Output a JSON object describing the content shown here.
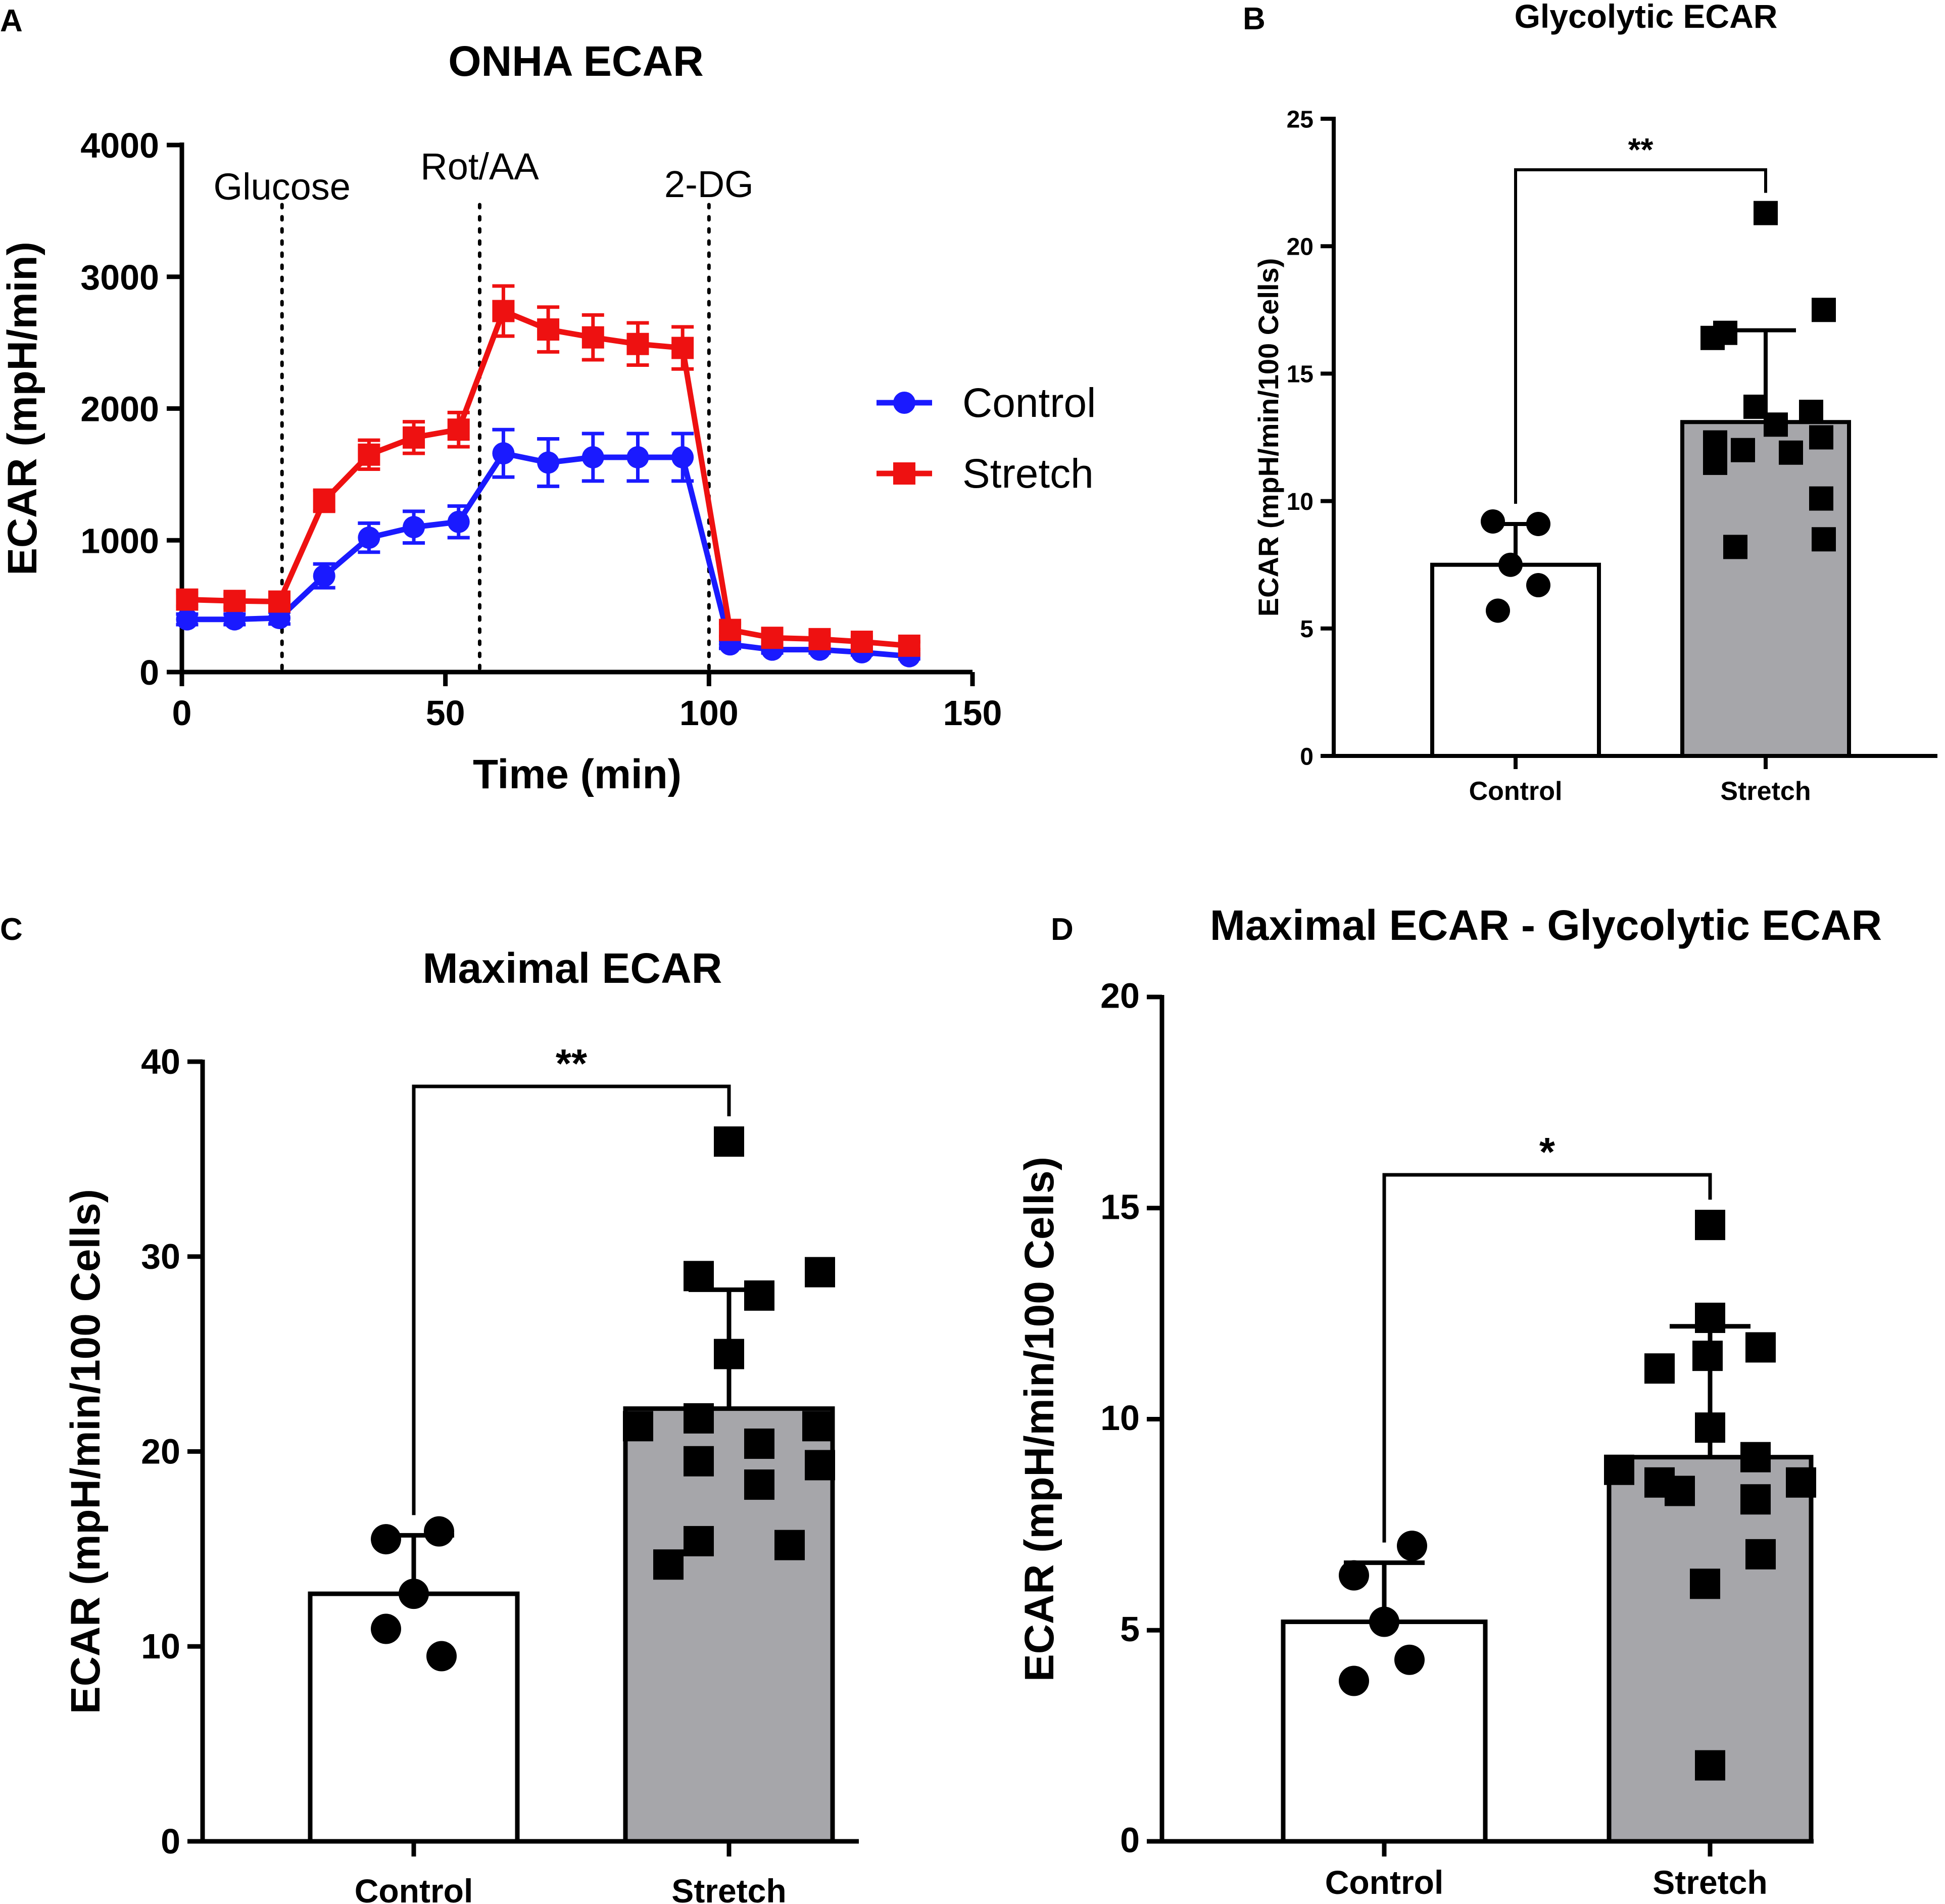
{
  "chart_data": [
    {
      "id": "A",
      "type": "line",
      "panel_letter": "A",
      "title": "ONHA ECAR",
      "xlabel": "Time (min)",
      "ylabel": "ECAR (mpH/min)",
      "xlim": [
        0,
        150
      ],
      "ylim": [
        0,
        4000
      ],
      "xticks": [
        0,
        50,
        100,
        150
      ],
      "yticks": [
        0,
        1000,
        2000,
        3000,
        4000
      ],
      "annotations": [
        {
          "label": "Glucose",
          "x": 19
        },
        {
          "label": "Rot/AA",
          "x": 56.5
        },
        {
          "label": "2-DG",
          "x": 100
        }
      ],
      "legend": {
        "position": "right",
        "entries": [
          "Control",
          "Stretch"
        ]
      },
      "series": [
        {
          "name": "Control",
          "color": "#1a1aff",
          "marker": "circle",
          "x": [
            1,
            10,
            18.5,
            27,
            35.5,
            44,
            52.5,
            61,
            69.5,
            78,
            86.5,
            95,
            104,
            112,
            121,
            129,
            138
          ],
          "y": [
            400,
            400,
            410,
            730,
            1020,
            1100,
            1140,
            1660,
            1590,
            1630,
            1630,
            1630,
            210,
            170,
            170,
            150,
            120
          ],
          "err": [
            40,
            40,
            45,
            90,
            110,
            120,
            120,
            180,
            180,
            180,
            180,
            180,
            30,
            25,
            25,
            20,
            20
          ]
        },
        {
          "name": "Stretch",
          "color": "#ee1111",
          "marker": "square",
          "x": [
            1,
            10,
            18.5,
            27,
            35.5,
            44,
            52.5,
            61,
            69.5,
            78,
            86.5,
            95,
            104,
            112,
            121,
            129,
            138
          ],
          "y": [
            550,
            540,
            535,
            1300,
            1650,
            1780,
            1840,
            2740,
            2600,
            2540,
            2490,
            2460,
            320,
            260,
            250,
            230,
            200
          ],
          "err": [
            50,
            50,
            50,
            80,
            110,
            120,
            130,
            190,
            170,
            170,
            160,
            160,
            50,
            40,
            40,
            35,
            30
          ]
        }
      ]
    },
    {
      "id": "B",
      "type": "bar",
      "panel_letter": "B",
      "title": "Glycolytic ECAR",
      "xlabel": "",
      "ylabel": "ECAR (mpH/min/100 Cells)",
      "ylim": [
        0,
        25
      ],
      "yticks": [
        0,
        5,
        10,
        15,
        20,
        25
      ],
      "categories": [
        "Control",
        "Stretch"
      ],
      "values": [
        7.5,
        13.1
      ],
      "sd": [
        1.6,
        3.6
      ],
      "points": [
        [
          9.2,
          9.1,
          7.5,
          6.7,
          5.7
        ],
        [
          21.3,
          17.5,
          16.6,
          16.4,
          13.7,
          13.5,
          13.0,
          12.5,
          12.3,
          12.0,
          11.9,
          11.5,
          10.1,
          8.5,
          8.2
        ]
      ],
      "significance": "**"
    },
    {
      "id": "C",
      "type": "bar",
      "panel_letter": "C",
      "title": "Maximal ECAR",
      "xlabel": "",
      "ylabel": "ECAR (mpH/min/100 Cells)",
      "ylim": [
        0,
        40
      ],
      "yticks": [
        0,
        10,
        20,
        30,
        40
      ],
      "categories": [
        "Control",
        "Stretch"
      ],
      "values": [
        12.7,
        22.2
      ],
      "sd": [
        3.0,
        6.1
      ],
      "points": [
        [
          15.9,
          15.5,
          12.7,
          10.9,
          9.5
        ],
        [
          35.9,
          29.2,
          29.0,
          28.0,
          25.0,
          21.7,
          21.3,
          21.3,
          20.4,
          19.5,
          19.3,
          18.3,
          15.4,
          15.2,
          14.2
        ]
      ],
      "significance": "**"
    },
    {
      "id": "D",
      "type": "bar",
      "panel_letter": "D",
      "title": "Maximal ECAR - Glycolytic ECAR",
      "xlabel": "",
      "ylabel": "ECAR (mpH/min/100 Cells)",
      "ylim": [
        0,
        20
      ],
      "yticks": [
        0,
        5,
        10,
        15,
        20
      ],
      "categories": [
        "Control",
        "Stretch"
      ],
      "values": [
        5.2,
        9.1
      ],
      "sd": [
        1.4,
        3.1
      ],
      "points": [
        [
          7.0,
          6.3,
          5.2,
          4.3,
          3.8
        ],
        [
          14.6,
          12.4,
          11.7,
          11.5,
          11.2,
          9.8,
          9.1,
          8.8,
          8.5,
          8.5,
          8.3,
          8.1,
          6.8,
          6.1,
          1.8
        ]
      ],
      "significance": "*"
    }
  ]
}
